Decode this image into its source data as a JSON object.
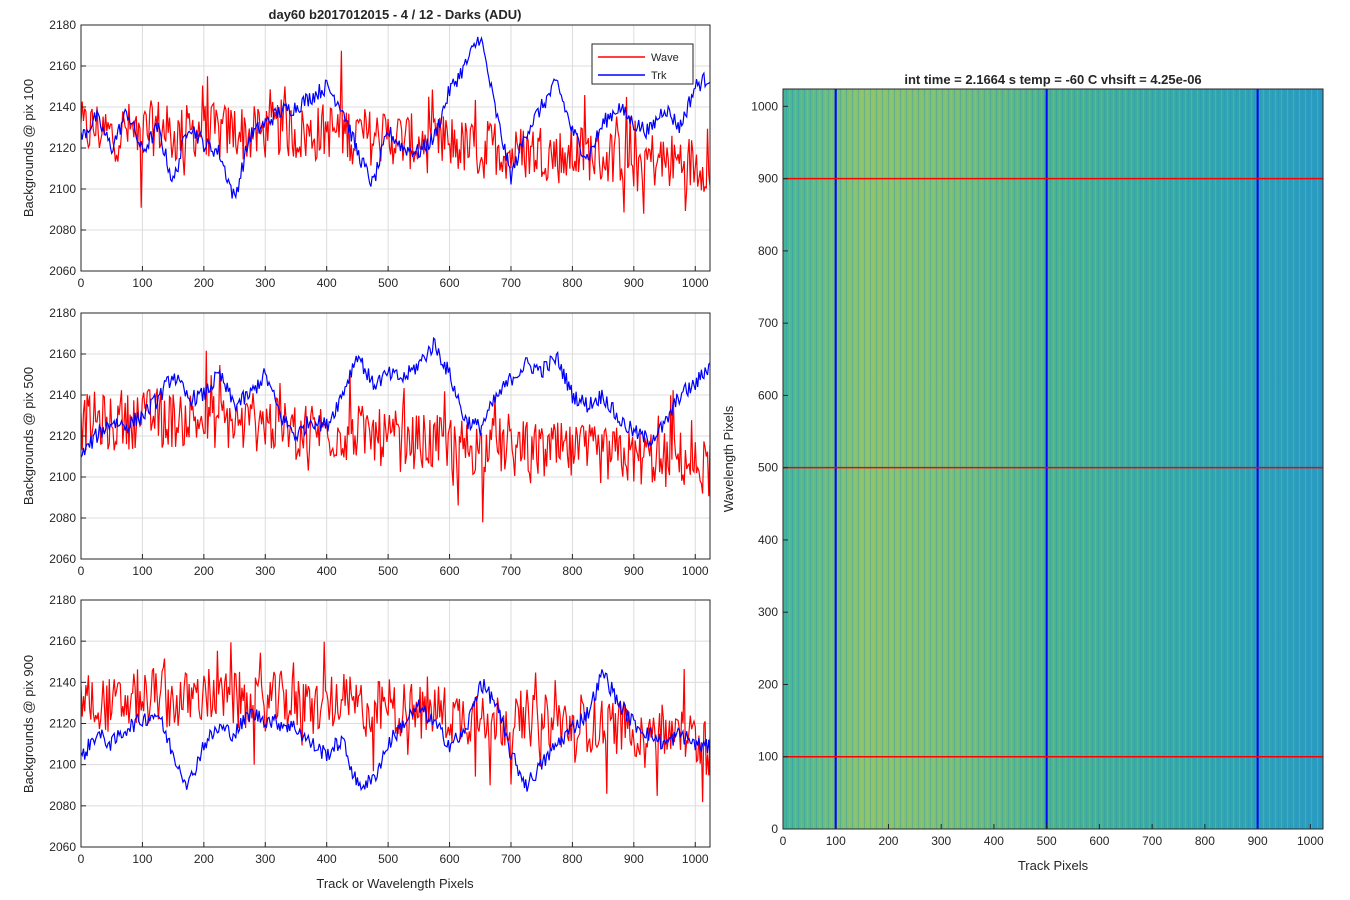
{
  "figure": {
    "left_title": "day60 b2017012015 - 4 / 12 - Darks (ADU)",
    "right_title": "int time = 2.1664 s    temp = -60 C    vhsift = 4.25e-06"
  },
  "colors": {
    "wave": "#ff0000",
    "trk": "#0000ff",
    "grid": "#dcdcdc",
    "axis": "#262626",
    "heat_low": "#1f96c8",
    "heat_mid": "#35b89a",
    "heat_high": "#b9c84e"
  },
  "chart_data": [
    {
      "type": "line",
      "title": "day60 b2017012015 - 4 / 12 - Darks (ADU)",
      "xlabel": "",
      "ylabel": "Backgrounds @ pix 100",
      "xlim": [
        0,
        1024
      ],
      "ylim": [
        2060,
        2180
      ],
      "xticks": [
        0,
        100,
        200,
        300,
        400,
        500,
        600,
        700,
        800,
        900,
        1000
      ],
      "yticks": [
        2060,
        2080,
        2100,
        2120,
        2140,
        2160,
        2180
      ],
      "grid": true,
      "legend": "top-right",
      "x": [
        0,
        25,
        50,
        75,
        100,
        125,
        150,
        175,
        200,
        225,
        250,
        275,
        300,
        325,
        350,
        375,
        400,
        425,
        450,
        475,
        500,
        525,
        550,
        575,
        600,
        625,
        650,
        675,
        700,
        725,
        750,
        775,
        800,
        825,
        850,
        875,
        900,
        925,
        950,
        975,
        1000,
        1024
      ],
      "series": [
        {
          "name": "Wave",
          "color": "#ff0000",
          "values": [
            2128,
            2130,
            2126,
            2129,
            2127,
            2131,
            2125,
            2128,
            2130,
            2127,
            2129,
            2126,
            2128,
            2130,
            2127,
            2126,
            2129,
            2128,
            2127,
            2125,
            2126,
            2124,
            2122,
            2121,
            2123,
            2120,
            2119,
            2121,
            2117,
            2118,
            2119,
            2116,
            2117,
            2118,
            2115,
            2117,
            2114,
            2115,
            2113,
            2114,
            2112,
            2113
          ]
        },
        {
          "name": "Trk",
          "color": "#0000ff",
          "values": [
            2125,
            2135,
            2120,
            2138,
            2118,
            2130,
            2103,
            2132,
            2122,
            2118,
            2095,
            2126,
            2132,
            2138,
            2140,
            2145,
            2150,
            2140,
            2118,
            2102,
            2128,
            2120,
            2118,
            2125,
            2148,
            2160,
            2175,
            2138,
            2106,
            2128,
            2140,
            2152,
            2128,
            2115,
            2132,
            2140,
            2132,
            2128,
            2140,
            2130,
            2150,
            2155
          ]
        }
      ]
    },
    {
      "type": "line",
      "xlabel": "",
      "ylabel": "Backgrounds @ pix 500",
      "xlim": [
        0,
        1024
      ],
      "ylim": [
        2060,
        2180
      ],
      "xticks": [
        0,
        100,
        200,
        300,
        400,
        500,
        600,
        700,
        800,
        900,
        1000
      ],
      "yticks": [
        2060,
        2080,
        2100,
        2120,
        2140,
        2160,
        2180
      ],
      "grid": true,
      "x": [
        0,
        25,
        50,
        75,
        100,
        125,
        150,
        175,
        200,
        225,
        250,
        275,
        300,
        325,
        350,
        375,
        400,
        425,
        450,
        475,
        500,
        525,
        550,
        575,
        600,
        625,
        650,
        675,
        700,
        725,
        750,
        775,
        800,
        825,
        850,
        875,
        900,
        925,
        950,
        975,
        1000,
        1024
      ],
      "series": [
        {
          "name": "Wave",
          "color": "#ff0000",
          "values": [
            2126,
            2128,
            2125,
            2127,
            2129,
            2130,
            2128,
            2129,
            2127,
            2128,
            2126,
            2125,
            2127,
            2124,
            2123,
            2124,
            2122,
            2121,
            2122,
            2120,
            2118,
            2119,
            2117,
            2116,
            2117,
            2115,
            2114,
            2116,
            2113,
            2114,
            2112,
            2113,
            2111,
            2112,
            2110,
            2111,
            2109,
            2110,
            2108,
            2109,
            2106,
            2104
          ]
        },
        {
          "name": "Trk",
          "color": "#0000ff",
          "values": [
            2110,
            2120,
            2127,
            2125,
            2130,
            2138,
            2150,
            2138,
            2140,
            2150,
            2135,
            2140,
            2150,
            2130,
            2120,
            2128,
            2125,
            2140,
            2160,
            2145,
            2150,
            2148,
            2155,
            2165,
            2150,
            2128,
            2124,
            2138,
            2148,
            2155,
            2152,
            2158,
            2140,
            2135,
            2140,
            2128,
            2122,
            2118,
            2125,
            2140,
            2145,
            2155
          ]
        }
      ]
    },
    {
      "type": "line",
      "xlabel": "Track or Wavelength Pixels",
      "ylabel": "Backgrounds @ pix 900",
      "xlim": [
        0,
        1024
      ],
      "ylim": [
        2060,
        2180
      ],
      "xticks": [
        0,
        100,
        200,
        300,
        400,
        500,
        600,
        700,
        800,
        900,
        1000
      ],
      "yticks": [
        2060,
        2080,
        2100,
        2120,
        2140,
        2160,
        2180
      ],
      "grid": true,
      "x": [
        0,
        25,
        50,
        75,
        100,
        125,
        150,
        175,
        200,
        225,
        250,
        275,
        300,
        325,
        350,
        375,
        400,
        425,
        450,
        475,
        500,
        525,
        550,
        575,
        600,
        625,
        650,
        675,
        700,
        725,
        750,
        775,
        800,
        825,
        850,
        875,
        900,
        925,
        950,
        975,
        1000,
        1024
      ],
      "series": [
        {
          "name": "Wave",
          "color": "#ff0000",
          "values": [
            2130,
            2132,
            2128,
            2131,
            2133,
            2135,
            2130,
            2132,
            2134,
            2133,
            2131,
            2128,
            2130,
            2132,
            2129,
            2127,
            2130,
            2131,
            2128,
            2126,
            2129,
            2127,
            2125,
            2127,
            2124,
            2123,
            2125,
            2122,
            2121,
            2123,
            2120,
            2121,
            2119,
            2120,
            2118,
            2119,
            2117,
            2118,
            2116,
            2115,
            2112,
            2108
          ]
        },
        {
          "name": "Trk",
          "color": "#0000ff",
          "values": [
            2103,
            2115,
            2110,
            2118,
            2122,
            2125,
            2105,
            2090,
            2110,
            2118,
            2115,
            2125,
            2122,
            2120,
            2118,
            2110,
            2105,
            2112,
            2090,
            2092,
            2110,
            2120,
            2128,
            2120,
            2110,
            2115,
            2140,
            2130,
            2105,
            2090,
            2100,
            2110,
            2118,
            2125,
            2145,
            2130,
            2120,
            2115,
            2110,
            2115,
            2110,
            2108
          ]
        }
      ]
    },
    {
      "type": "heatmap",
      "title": "int time = 2.1664 s    temp = -60 C    vhsift = 4.25e-06",
      "xlabel": "Track Pixels",
      "ylabel": "Wavelength Pixels",
      "xlim": [
        0,
        1024
      ],
      "ylim": [
        0,
        1024
      ],
      "xticks": [
        0,
        100,
        200,
        300,
        400,
        500,
        600,
        700,
        800,
        900,
        1000
      ],
      "yticks": [
        0,
        100,
        200,
        300,
        400,
        500,
        600,
        700,
        800,
        900,
        1000
      ],
      "grid": false,
      "vertical_markers": [
        100,
        500,
        900
      ],
      "vertical_marker_color": "#0000ff",
      "horizontal_markers": [
        100,
        500,
        900
      ],
      "horizontal_marker_color": "#ff0000"
    }
  ]
}
